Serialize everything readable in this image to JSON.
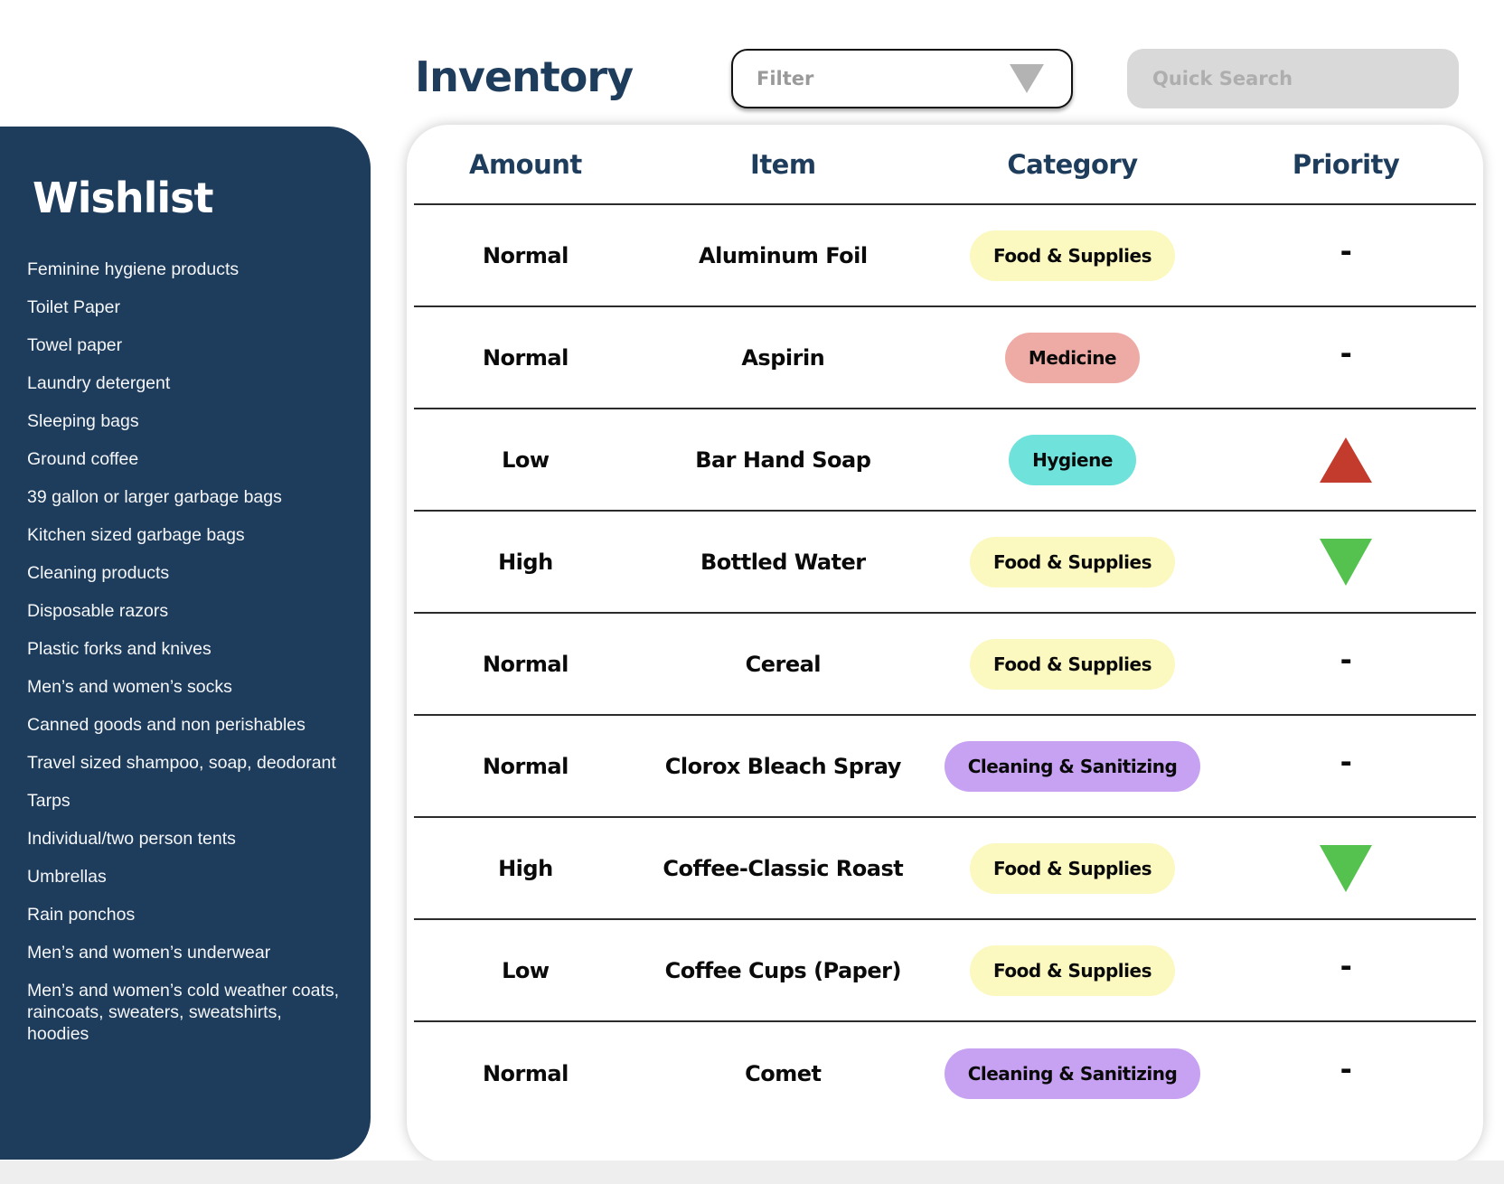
{
  "page": {
    "title": "Inventory"
  },
  "toolbar": {
    "filter_label": "Filter",
    "search_placeholder": "Quick Search"
  },
  "sidebar": {
    "title": "Wishlist",
    "items": [
      "Feminine hygiene products",
      "Toilet Paper",
      "Towel paper",
      "Laundry detergent",
      "Sleeping bags",
      "Ground coffee",
      "39 gallon or larger garbage bags",
      "Kitchen sized garbage bags",
      "Cleaning products",
      "Disposable razors",
      "Plastic forks and knives",
      "Men’s and women’s socks",
      "Canned goods and non perishables",
      "Travel sized shampoo, soap, deodorant",
      "Tarps",
      "Individual/two person tents",
      "Umbrellas",
      "Rain ponchos",
      "Men’s and women’s underwear",
      "Men’s and women’s cold weather coats, raincoats, sweaters, sweatshirts, hoodies"
    ]
  },
  "table": {
    "columns": [
      "Amount",
      "Item",
      "Category",
      "Priority"
    ],
    "rows": [
      {
        "amount": "Normal",
        "item": "Aluminum Foil",
        "category": "Food & Supplies",
        "priority": "-"
      },
      {
        "amount": "Normal",
        "item": "Aspirin",
        "category": "Medicine",
        "priority": "-"
      },
      {
        "amount": "Low",
        "item": "Bar Hand Soap",
        "category": "Hygiene",
        "priority": "up"
      },
      {
        "amount": "High",
        "item": "Bottled Water",
        "category": "Food & Supplies",
        "priority": "down"
      },
      {
        "amount": "Normal",
        "item": "Cereal",
        "category": "Food & Supplies",
        "priority": "-"
      },
      {
        "amount": "Normal",
        "item": "Clorox Bleach Spray",
        "category": "Cleaning & Sanitizing",
        "priority": "-"
      },
      {
        "amount": "High",
        "item": "Coffee-Classic Roast",
        "category": "Food & Supplies",
        "priority": "down"
      },
      {
        "amount": "Low",
        "item": "Coffee Cups (Paper)",
        "category": "Food & Supplies",
        "priority": "-"
      },
      {
        "amount": "Normal",
        "item": "Comet",
        "category": "Cleaning & Sanitizing",
        "priority": "-"
      }
    ],
    "category_colors": {
      "Food & Supplies": "#fbf8c0",
      "Medicine": "#eeaba5",
      "Hygiene": "#6fe3db",
      "Cleaning & Sanitizing": "#c7a1f2"
    },
    "priority_colors": {
      "up": "#c23b2d",
      "down": "#55c14e"
    }
  },
  "colors": {
    "navy": "#1e3c5c",
    "search_bg": "#d9d9d9",
    "row_line": "#2b2b2b"
  }
}
